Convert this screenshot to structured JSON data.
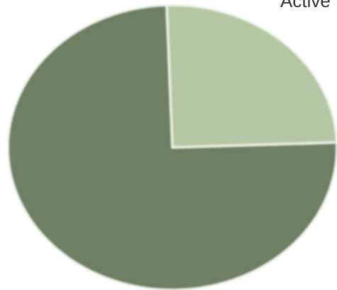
{
  "chart_data": {
    "type": "pie",
    "start_angle_deg": -2,
    "slices": [
      {
        "label": "Active",
        "value": 25,
        "color": "#b5c7a2"
      },
      {
        "label": "",
        "value": 75,
        "color": "#6e7f62"
      }
    ]
  }
}
